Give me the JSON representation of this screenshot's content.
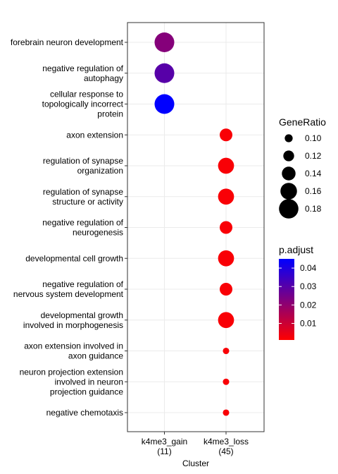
{
  "chart_data": {
    "type": "scatter",
    "xlabel": "Cluster",
    "ylabel": "",
    "categories_x": [
      "k4me3_gain\n(11)",
      "k4me3_loss\n(45)"
    ],
    "categories_y": [
      "forebrain neuron development",
      "negative regulation of\nautophagy",
      "cellular response to\ntopologically incorrect\nprotein",
      "axon extension",
      "regulation of synapse\norganization",
      "regulation of synapse\nstructure or activity",
      "negative regulation of\nneurogenesis",
      "developmental cell growth",
      "negative regulation of\nnervous system development",
      "developmental growth\ninvolved in morphogenesis",
      "axon extension involved in\naxon guidance",
      "neuron projection extension\ninvolved in neuron\nprojection guidance",
      "negative chemotaxis"
    ],
    "points": [
      {
        "x": "k4me3_gain\n(11)",
        "y": "forebrain neuron development",
        "GeneRatio": 0.182,
        "p_adjust": 0.022
      },
      {
        "x": "k4me3_gain\n(11)",
        "y": "negative regulation of\nautophagy",
        "GeneRatio": 0.182,
        "p_adjust": 0.03
      },
      {
        "x": "k4me3_gain\n(11)",
        "y": "cellular response to\ntopologically incorrect\nprotein",
        "GeneRatio": 0.182,
        "p_adjust": 0.045
      },
      {
        "x": "k4me3_loss\n(45)",
        "y": "axon extension",
        "GeneRatio": 0.133,
        "p_adjust": 0.002
      },
      {
        "x": "k4me3_loss\n(45)",
        "y": "regulation of synapse\norganization",
        "GeneRatio": 0.156,
        "p_adjust": 0.002
      },
      {
        "x": "k4me3_loss\n(45)",
        "y": "regulation of synapse\nstructure or activity",
        "GeneRatio": 0.156,
        "p_adjust": 0.002
      },
      {
        "x": "k4me3_loss\n(45)",
        "y": "negative regulation of\nneurogenesis",
        "GeneRatio": 0.133,
        "p_adjust": 0.002
      },
      {
        "x": "k4me3_loss\n(45)",
        "y": "developmental cell growth",
        "GeneRatio": 0.156,
        "p_adjust": 0.002
      },
      {
        "x": "k4me3_loss\n(45)",
        "y": "negative regulation of\nnervous system development",
        "GeneRatio": 0.133,
        "p_adjust": 0.002
      },
      {
        "x": "k4me3_loss\n(45)",
        "y": "developmental growth\ninvolved in morphogenesis",
        "GeneRatio": 0.156,
        "p_adjust": 0.002
      },
      {
        "x": "k4me3_loss\n(45)",
        "y": "axon extension involved in\naxon guidance",
        "GeneRatio": 0.089,
        "p_adjust": 0.002
      },
      {
        "x": "k4me3_loss\n(45)",
        "y": "neuron projection extension\ninvolved in neuron\nprojection guidance",
        "GeneRatio": 0.089,
        "p_adjust": 0.002
      },
      {
        "x": "k4me3_loss\n(45)",
        "y": "negative chemotaxis",
        "GeneRatio": 0.089,
        "p_adjust": 0.002
      }
    ],
    "size_legend": {
      "title": "GeneRatio",
      "breaks": [
        0.1,
        0.12,
        0.14,
        0.16,
        0.18
      ],
      "labels": [
        "0.10",
        "0.12",
        "0.14",
        "0.16",
        "0.18"
      ]
    },
    "color_legend": {
      "title": "p.adjust",
      "breaks": [
        0.01,
        0.02,
        0.03,
        0.04
      ],
      "labels": [
        "0.01",
        "0.02",
        "0.03",
        "0.04"
      ],
      "range": [
        0.001,
        0.045
      ],
      "low_color": "#ff0000",
      "high_color": "#0000ff"
    },
    "grid": true,
    "legend_position": "right"
  }
}
